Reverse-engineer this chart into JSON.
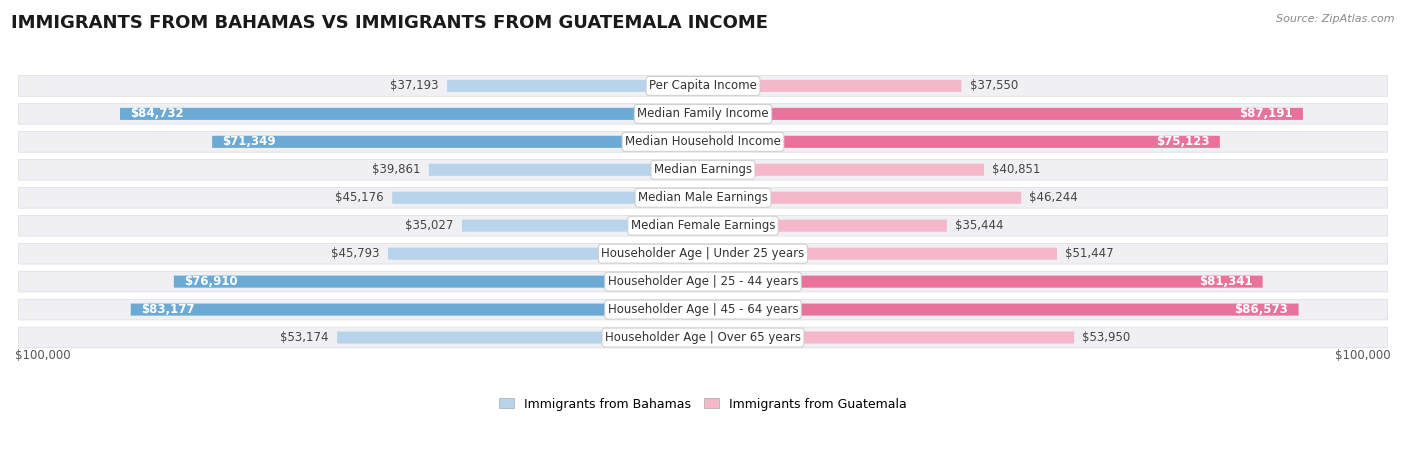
{
  "title": "IMMIGRANTS FROM BAHAMAS VS IMMIGRANTS FROM GUATEMALA INCOME",
  "source": "Source: ZipAtlas.com",
  "categories": [
    "Per Capita Income",
    "Median Family Income",
    "Median Household Income",
    "Median Earnings",
    "Median Male Earnings",
    "Median Female Earnings",
    "Householder Age | Under 25 years",
    "Householder Age | 25 - 44 years",
    "Householder Age | 45 - 64 years",
    "Householder Age | Over 65 years"
  ],
  "bahamas_values": [
    37193,
    84732,
    71349,
    39861,
    45176,
    35027,
    45793,
    76910,
    83177,
    53174
  ],
  "guatemala_values": [
    37550,
    87191,
    75123,
    40851,
    46244,
    35444,
    51447,
    81341,
    86573,
    53950
  ],
  "bahamas_labels": [
    "$37,193",
    "$84,732",
    "$71,349",
    "$39,861",
    "$45,176",
    "$35,027",
    "$45,793",
    "$76,910",
    "$83,177",
    "$53,174"
  ],
  "guatemala_labels": [
    "$37,550",
    "$87,191",
    "$75,123",
    "$40,851",
    "$46,244",
    "$35,444",
    "$51,447",
    "$81,341",
    "$86,573",
    "$53,950"
  ],
  "bahamas_color_light": "#b8d4ea",
  "bahamas_color_dark": "#6aaad4",
  "guatemala_color_light": "#f5b8cb",
  "guatemala_color_dark": "#e8729a",
  "max_value": 100000,
  "background_color": "#ffffff",
  "row_bg_color": "#f0f0f4",
  "title_fontsize": 13,
  "label_fontsize": 8.5,
  "category_fontsize": 8.5,
  "legend_labels": [
    "Immigrants from Bahamas",
    "Immigrants from Guatemala"
  ],
  "bahamas_threshold": 60000,
  "guatemala_threshold": 60000
}
